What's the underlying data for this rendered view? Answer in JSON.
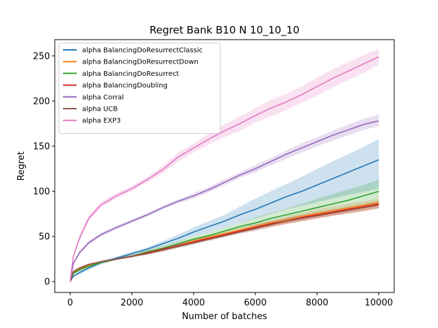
{
  "chart_data": {
    "type": "line",
    "title": "Regret Bank B10 N 10_10_10",
    "xlabel": "Number of batches",
    "ylabel": "Regret",
    "xlim": [
      -500,
      10500
    ],
    "ylim": [
      -12,
      268
    ],
    "xticks": [
      0,
      2000,
      4000,
      6000,
      8000,
      10000
    ],
    "xtick_labels": [
      "0",
      "2000",
      "4000",
      "6000",
      "8000",
      "10000"
    ],
    "yticks": [
      0,
      50,
      100,
      150,
      200,
      250
    ],
    "ytick_labels": [
      "0",
      "50",
      "100",
      "150",
      "200",
      "250"
    ],
    "grid": false,
    "legend_position": "upper-left",
    "series": [
      {
        "name": "alpha BalancingDoResurrectClassic",
        "color": "#1f77b4",
        "x": [
          0,
          100,
          300,
          600,
          1000,
          1500,
          2000,
          2500,
          3000,
          3500,
          4000,
          4500,
          5000,
          5500,
          6000,
          6500,
          7000,
          7500,
          8000,
          8500,
          9000,
          9500,
          10000
        ],
        "y": [
          0,
          6,
          10,
          15,
          21,
          26,
          31,
          36,
          42,
          48,
          55,
          61,
          67,
          74,
          80,
          87,
          94,
          100,
          107,
          114,
          121,
          128,
          135
        ],
        "lower": [
          0,
          5,
          8,
          13,
          19,
          24,
          29,
          34,
          39,
          44,
          50,
          55,
          60,
          65,
          70,
          75,
          80,
          84,
          88,
          92,
          96,
          99,
          103
        ],
        "upper": [
          0,
          7,
          12,
          17,
          23,
          28,
          33,
          38,
          45,
          52,
          60,
          67,
          74,
          83,
          92,
          100,
          108,
          116,
          125,
          133,
          141,
          149,
          158
        ]
      },
      {
        "name": "alpha BalancingDoResurrectDown",
        "color": "#ff7f0e",
        "x": [
          0,
          100,
          300,
          600,
          1000,
          1500,
          2000,
          2500,
          3000,
          3500,
          4000,
          4500,
          5000,
          5500,
          6000,
          6500,
          7000,
          7500,
          8000,
          8500,
          9000,
          9500,
          10000
        ],
        "y": [
          0,
          10,
          14,
          18,
          22,
          25,
          28,
          32,
          36,
          40,
          45,
          49,
          53,
          57,
          61,
          65,
          68,
          72,
          75,
          78,
          81,
          84,
          87
        ],
        "lower": [
          0,
          9,
          13,
          17,
          21,
          24,
          27,
          30,
          34,
          38,
          42,
          46,
          50,
          54,
          58,
          61,
          64,
          67,
          70,
          73,
          76,
          78,
          81
        ],
        "upper": [
          0,
          11,
          15,
          19,
          23,
          26,
          29,
          34,
          38,
          43,
          48,
          52,
          56,
          60,
          64,
          68,
          72,
          76,
          80,
          83,
          86,
          89,
          92
        ]
      },
      {
        "name": "alpha BalancingDoResurrect",
        "color": "#2ca02c",
        "x": [
          0,
          100,
          300,
          600,
          1000,
          1500,
          2000,
          2500,
          3000,
          3500,
          4000,
          4500,
          5000,
          5500,
          6000,
          6500,
          7000,
          7500,
          8000,
          8500,
          9000,
          9500,
          10000
        ],
        "y": [
          0,
          9,
          13,
          17,
          21,
          25,
          28,
          33,
          37,
          42,
          47,
          51,
          56,
          61,
          65,
          70,
          74,
          78,
          82,
          86,
          90,
          95,
          100
        ],
        "lower": [
          0,
          8,
          12,
          16,
          20,
          24,
          27,
          31,
          35,
          39,
          44,
          48,
          52,
          56,
          60,
          63,
          67,
          70,
          73,
          77,
          80,
          84,
          88
        ],
        "upper": [
          0,
          10,
          14,
          18,
          22,
          26,
          30,
          35,
          40,
          45,
          50,
          55,
          60,
          65,
          71,
          76,
          81,
          86,
          92,
          97,
          102,
          107,
          113
        ]
      },
      {
        "name": "alpha BalancingDoubling",
        "color": "#d62728",
        "x": [
          0,
          100,
          300,
          600,
          1000,
          1500,
          2000,
          2500,
          3000,
          3500,
          4000,
          4500,
          5000,
          5500,
          6000,
          6500,
          7000,
          7500,
          8000,
          8500,
          9000,
          9500,
          10000
        ],
        "y": [
          0,
          11,
          15,
          19,
          22,
          25,
          28,
          32,
          36,
          40,
          44,
          48,
          52,
          56,
          60,
          64,
          67,
          71,
          74,
          77,
          80,
          83,
          86
        ],
        "lower": [
          0,
          10,
          14,
          18,
          21,
          24,
          27,
          31,
          34,
          38,
          42,
          46,
          50,
          54,
          57,
          61,
          64,
          67,
          70,
          73,
          76,
          79,
          82
        ],
        "upper": [
          0,
          12,
          16,
          20,
          23,
          26,
          29,
          33,
          38,
          42,
          46,
          50,
          54,
          58,
          63,
          67,
          70,
          74,
          77,
          80,
          83,
          86,
          89
        ]
      },
      {
        "name": "alpha Corral",
        "color": "#9467bd",
        "x": [
          0,
          100,
          300,
          600,
          1000,
          1500,
          2000,
          2500,
          3000,
          3500,
          4000,
          4500,
          5000,
          5500,
          6000,
          6500,
          7000,
          7500,
          8000,
          8500,
          9000,
          9500,
          10000
        ],
        "y": [
          0,
          20,
          32,
          43,
          52,
          60,
          67,
          74,
          82,
          89,
          95,
          102,
          110,
          118,
          125,
          133,
          141,
          148,
          155,
          162,
          168,
          174,
          178
        ],
        "lower": [
          0,
          18,
          30,
          41,
          50,
          58,
          65,
          72,
          80,
          87,
          92,
          99,
          107,
          115,
          121,
          129,
          136,
          143,
          150,
          156,
          162,
          168,
          172
        ],
        "upper": [
          0,
          22,
          34,
          45,
          54,
          62,
          69,
          76,
          84,
          91,
          98,
          105,
          113,
          121,
          129,
          137,
          145,
          153,
          160,
          167,
          174,
          180,
          185
        ]
      },
      {
        "name": "alpha UCB",
        "color": "#8c564b",
        "x": [
          0,
          100,
          300,
          600,
          1000,
          1500,
          2000,
          2500,
          3000,
          3500,
          4000,
          4500,
          5000,
          5500,
          6000,
          6500,
          7000,
          7500,
          8000,
          8500,
          9000,
          9500,
          10000
        ],
        "y": [
          0,
          11,
          15,
          19,
          22,
          25,
          28,
          31,
          35,
          39,
          43,
          47,
          51,
          55,
          59,
          63,
          67,
          70,
          73,
          76,
          79,
          82,
          85
        ],
        "lower": [
          0,
          10,
          14,
          18,
          21,
          24,
          27,
          30,
          33,
          37,
          41,
          45,
          49,
          53,
          56,
          60,
          64,
          67,
          70,
          73,
          75,
          78,
          81
        ],
        "upper": [
          0,
          12,
          16,
          20,
          23,
          26,
          29,
          33,
          37,
          41,
          45,
          49,
          53,
          57,
          62,
          66,
          70,
          73,
          76,
          79,
          82,
          85,
          89
        ]
      },
      {
        "name": "alpha EXP3",
        "color": "#e377c2",
        "x": [
          0,
          100,
          300,
          600,
          1000,
          1500,
          2000,
          2500,
          3000,
          3500,
          4000,
          4500,
          5000,
          5500,
          6000,
          6500,
          7000,
          7500,
          8000,
          8500,
          9000,
          9500,
          10000
        ],
        "y": [
          0,
          28,
          48,
          70,
          85,
          95,
          103,
          113,
          124,
          138,
          148,
          158,
          167,
          175,
          184,
          192,
          199,
          207,
          216,
          225,
          233,
          241,
          249
        ],
        "lower": [
          0,
          26,
          45,
          67,
          82,
          92,
          100,
          110,
          120,
          133,
          143,
          152,
          160,
          167,
          176,
          183,
          190,
          198,
          206,
          215,
          223,
          231,
          240
        ],
        "upper": [
          0,
          30,
          51,
          73,
          88,
          98,
          106,
          116,
          128,
          143,
          153,
          164,
          174,
          183,
          192,
          201,
          208,
          216,
          226,
          235,
          243,
          251,
          258
        ]
      }
    ]
  }
}
